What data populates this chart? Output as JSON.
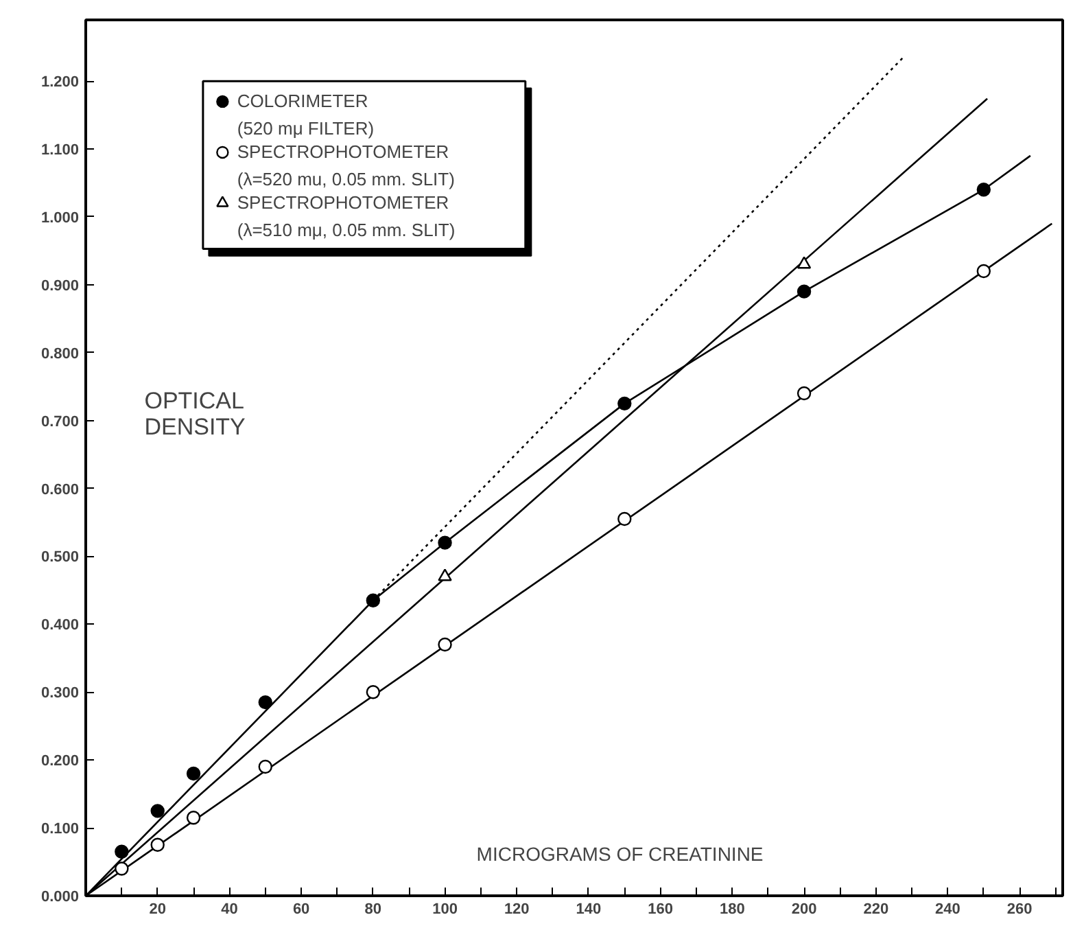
{
  "chart_data": {
    "type": "scatter",
    "xlabel": "MICROGRAMS OF CREATININE",
    "ylabel": "OPTICAL\nDENSITY",
    "legend": "top left",
    "grid": false,
    "xlim": [
      0,
      272
    ],
    "ylim": [
      0,
      1.29
    ],
    "xticks": [
      {
        "value": 10,
        "label": null
      },
      20,
      {
        "value": 30,
        "label": null
      },
      40,
      {
        "value": 50,
        "label": null
      },
      60,
      {
        "value": 70,
        "label": null
      },
      80,
      {
        "value": 90,
        "label": null
      },
      100,
      {
        "value": 110,
        "label": null
      },
      120,
      {
        "value": 130,
        "label": null
      },
      140,
      {
        "value": 150,
        "label": null
      },
      160,
      {
        "value": 170,
        "label": null
      },
      180,
      {
        "value": 190,
        "label": null
      },
      200,
      {
        "value": 210,
        "label": null
      },
      220,
      {
        "value": 230,
        "label": null
      },
      240,
      {
        "value": 250,
        "label": null
      },
      260,
      {
        "value": 270,
        "label": null
      }
    ],
    "yticks": [
      {
        "value": 0,
        "label": "0.000"
      },
      {
        "value": 0.1,
        "label": "0.100"
      },
      {
        "value": 0.2,
        "label": "0.200"
      },
      {
        "value": 0.3,
        "label": "0.300"
      },
      {
        "value": 0.4,
        "label": "0.400"
      },
      {
        "value": 0.5,
        "label": "0.500"
      },
      {
        "value": 0.6,
        "label": "0.600"
      },
      {
        "value": 0.7,
        "label": "0.700"
      },
      {
        "value": 0.8,
        "label": "0.800"
      },
      {
        "value": 0.9,
        "label": "0.900"
      },
      {
        "value": 1.0,
        "label": "1.000"
      },
      {
        "value": 1.1,
        "label": "1.100"
      },
      {
        "value": 1.2,
        "label": "1.200"
      }
    ],
    "series": [
      {
        "type": "line",
        "color": "#000000",
        "line_style": "solid",
        "x": [
          0,
          80,
          100,
          150,
          200,
          250,
          263
        ],
        "values": [
          0,
          0.435,
          0.52,
          0.725,
          0.89,
          1.04,
          1.09
        ]
      },
      {
        "type": "line",
        "color": "#000000",
        "line_style": "dotted",
        "x": [
          80,
          228
        ],
        "values": [
          0.435,
          1.237
        ]
      },
      {
        "type": "line",
        "color": "#000000",
        "line_style": "solid",
        "x": [
          0,
          251
        ],
        "values": [
          0,
          1.174
        ]
      },
      {
        "type": "line",
        "color": "#000000",
        "line_style": "solid",
        "x": [
          0,
          269
        ],
        "values": [
          0,
          0.99
        ]
      },
      {
        "name": "COLORIMETER\n(520 mμ FILTER)",
        "marker": "circle",
        "color": "#000000",
        "x": [
          10,
          20,
          30,
          50,
          80,
          100,
          150,
          200,
          250
        ],
        "values": [
          0.065,
          0.125,
          0.18,
          0.285,
          0.435,
          0.52,
          0.725,
          0.89,
          1.04
        ]
      },
      {
        "name": "SPECTROPHOTOMETER\n(λ=520 mu, 0.05 mm. SLIT)",
        "marker": "circle",
        "color": "#ffffff",
        "x": [
          10,
          20,
          30,
          50,
          80,
          100,
          150,
          200,
          250
        ],
        "values": [
          0.04,
          0.075,
          0.115,
          0.19,
          0.3,
          0.37,
          0.555,
          0.74,
          0.92
        ]
      },
      {
        "name": "SPECTROPHOTOMETER\n(λ=510 mμ, 0.05 mm. SLIT)",
        "marker": "triangle",
        "color": "#ffffff",
        "x": [
          100,
          200
        ],
        "values": [
          0.47,
          0.93
        ]
      }
    ]
  }
}
